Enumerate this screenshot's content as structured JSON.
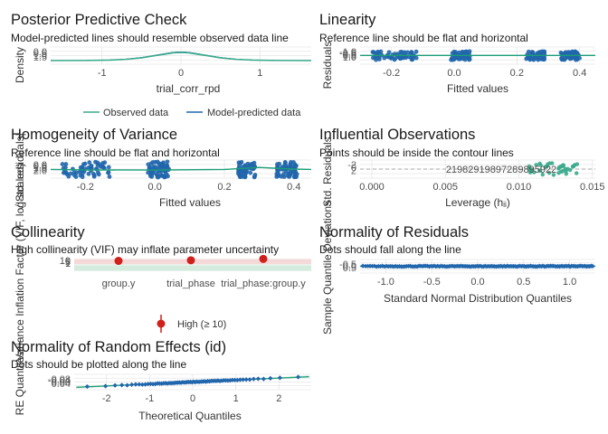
{
  "colors": {
    "observed": "#3aaa8c",
    "predicted": "#2166ac",
    "teal_line": "#1b9e77",
    "high_vif": "#d0201b",
    "band_green": "#c9e6d6",
    "band_red": "#f3cfcf",
    "grid": "#e6e6e6",
    "dashed": "#444444",
    "contour": "#8fbc9f"
  },
  "chart_data": [
    {
      "id": "ppc",
      "type": "line",
      "title": "Posterior Predictive Check",
      "subtitle": "Model-predicted lines should resemble observed data line",
      "xlabel": "trial_corr_rpd",
      "ylabel": "Density",
      "x_ticks": [
        "-1",
        "0",
        "1"
      ],
      "x_tick_values": [
        -1,
        0,
        1
      ],
      "y_ticks": [
        "0.0",
        "0.5",
        "1.0",
        "1.5"
      ],
      "xlim": [
        -1.65,
        1.65
      ],
      "ylim": [
        0,
        1.6
      ],
      "series": [
        {
          "name": "Observed data",
          "x": [
            -1.65,
            -1.2,
            -0.9,
            -0.7,
            -0.5,
            -0.35,
            -0.2,
            -0.1,
            0,
            0.1,
            0.2,
            0.35,
            0.5,
            0.7,
            0.9,
            1.2,
            1.65
          ],
          "values": [
            0.0,
            0.02,
            0.08,
            0.2,
            0.45,
            0.75,
            1.05,
            1.25,
            1.32,
            1.25,
            1.05,
            0.75,
            0.45,
            0.2,
            0.08,
            0.02,
            0.0
          ]
        },
        {
          "name": "Model-predicted data",
          "x": [
            -1.65,
            -1.2,
            -0.9,
            -0.7,
            -0.5,
            -0.35,
            -0.2,
            -0.1,
            0,
            0.1,
            0.2,
            0.35,
            0.5,
            0.7,
            0.9,
            1.2,
            1.65
          ],
          "values": [
            0.0,
            0.03,
            0.1,
            0.22,
            0.48,
            0.78,
            1.08,
            1.28,
            1.35,
            1.28,
            1.08,
            0.78,
            0.48,
            0.22,
            0.1,
            0.03,
            0.0
          ]
        }
      ],
      "legend": [
        "Observed data",
        "Model-predicted data"
      ]
    },
    {
      "id": "linearity",
      "type": "scatter",
      "title": "Linearity",
      "subtitle": "Reference line should be flat and horizontal",
      "xlabel": "Fitted values",
      "ylabel": "Residuals",
      "x_ticks": [
        "-0.2",
        "0.0",
        "0.2",
        "0.4"
      ],
      "x_tick_values": [
        -0.2,
        0.0,
        0.2,
        0.4
      ],
      "y_ticks": [
        "-1.0",
        "-0.5",
        "0.0",
        "0.5",
        "1.0"
      ],
      "xlim": [
        -0.3,
        0.45
      ],
      "ylim": [
        -1.2,
        1.2
      ],
      "clusters_x": [
        [
          -0.26,
          -0.12
        ],
        [
          -0.01,
          0.05
        ],
        [
          0.23,
          0.29
        ],
        [
          0.34,
          0.4
        ]
      ],
      "y_range": [
        -0.6,
        0.6
      ]
    },
    {
      "id": "homogeneity",
      "type": "scatter",
      "title": "Homogeneity of Variance",
      "subtitle": "Reference line should be flat and horizontal",
      "xlabel": "Fitted values",
      "ylabel": "√|Std. residuals|",
      "x_ticks": [
        "-0.2",
        "0.0",
        "0.2",
        "0.4"
      ],
      "x_tick_values": [
        -0.2,
        0.0,
        0.2,
        0.4
      ],
      "y_ticks": [
        "0.0",
        "0.5",
        "1.0",
        "1.5",
        "2.0"
      ],
      "xlim": [
        -0.3,
        0.45
      ],
      "ylim": [
        0,
        2.2
      ],
      "clusters_x": [
        [
          -0.27,
          -0.13
        ],
        [
          -0.02,
          0.04
        ],
        [
          0.24,
          0.29
        ],
        [
          0.35,
          0.41
        ]
      ],
      "y_range": [
        0.1,
        2.0
      ]
    },
    {
      "id": "influential",
      "type": "scatter",
      "title": "Influential Observations",
      "subtitle": "Points should be inside the contour lines",
      "xlabel": "Leverage (hᵢᵢ)",
      "ylabel": "Std. Residuals",
      "x_ticks": [
        "0.000",
        "0.005",
        "0.010",
        "0.015"
      ],
      "x_tick_values": [
        0.0,
        0.005,
        0.01,
        0.015
      ],
      "y_ticks": [
        "-2",
        "0",
        "2"
      ],
      "xlim": [
        -0.0008,
        0.0152
      ],
      "ylim": [
        -3,
        3
      ],
      "clusters_x": [
        [
          0.0107,
          0.0141
        ]
      ],
      "labels": [
        "2198",
        "2189",
        "2197"
      ],
      "label_text": "21982919897289895922"
    },
    {
      "id": "collinearity",
      "type": "scatter",
      "title": "Collinearity",
      "subtitle": "High collinearity (VIF) may inflate parameter uncertainty",
      "xlabel": "",
      "ylabel": "Variance Inflation Factor (VIF, log-scaled)",
      "categories": [
        "group.y",
        "trial_phase",
        "trial_phase:group.y"
      ],
      "values": [
        10.5,
        12.2,
        16.8
      ],
      "y_ticks": [
        "1",
        "5",
        "10"
      ],
      "y_tick_values": [
        1,
        5,
        10
      ],
      "ylim": [
        0.9,
        18
      ],
      "legend": [
        "High (≥ 10)"
      ]
    },
    {
      "id": "normality_residuals",
      "type": "scatter",
      "title": "Normality of Residuals",
      "subtitle": "Dots should fall along the line",
      "xlabel": "Standard Normal Distribution Quantiles",
      "ylabel": "Sample Quantile Deviations",
      "x_ticks": [
        "-1.0",
        "-0.5",
        "0.0",
        "0.5",
        "1.0"
      ],
      "x_tick_values": [
        -1.0,
        -0.5,
        0.0,
        0.5,
        1.0
      ],
      "y_ticks": [
        "-0.5",
        "0.0",
        "0.5"
      ],
      "xlim": [
        -1.28,
        1.28
      ],
      "ylim": [
        -0.7,
        0.7
      ]
    },
    {
      "id": "normality_random_effects",
      "type": "scatter",
      "title": "Normality of Random Effects (id)",
      "subtitle": "Dots should be plotted along the line",
      "xlabel": "Theoretical Quantiles",
      "ylabel": "RE Quantiles",
      "x_ticks": [
        "-2",
        "-1",
        "0",
        "1",
        "2"
      ],
      "x_tick_values": [
        -2,
        -1,
        0,
        1,
        2
      ],
      "y_ticks": [
        "-0.08",
        "-0.04",
        "0.00",
        "0.04"
      ],
      "xlim": [
        -2.75,
        2.75
      ],
      "ylim": [
        -0.1,
        0.06
      ]
    }
  ]
}
